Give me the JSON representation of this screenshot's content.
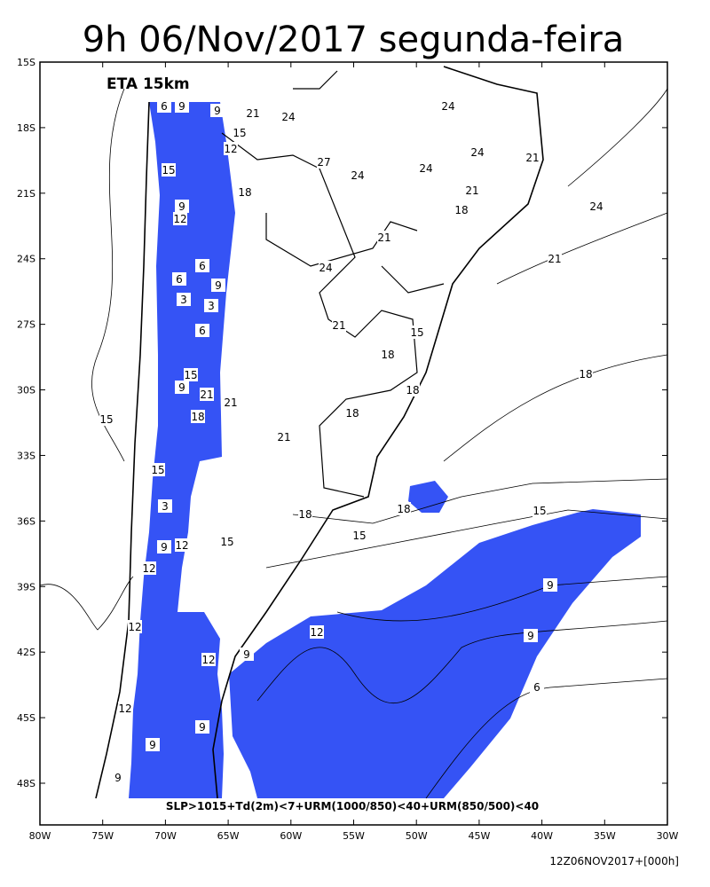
{
  "header": {
    "title": "9h 06/Nov/2017 segunda-feira",
    "model": "ETA 15km"
  },
  "map": {
    "lat_ticks": [
      {
        "value": -15,
        "label": "15S"
      },
      {
        "value": -18,
        "label": "18S"
      },
      {
        "value": -21,
        "label": "21S"
      },
      {
        "value": -24,
        "label": "24S"
      },
      {
        "value": -27,
        "label": "27S"
      },
      {
        "value": -30,
        "label": "30S"
      },
      {
        "value": -33,
        "label": "33S"
      },
      {
        "value": -36,
        "label": "36S"
      },
      {
        "value": -39,
        "label": "39S"
      },
      {
        "value": -42,
        "label": "42S"
      },
      {
        "value": -45,
        "label": "45S"
      },
      {
        "value": -48,
        "label": "48S"
      }
    ],
    "lon_ticks": [
      {
        "value": -80,
        "label": "80W"
      },
      {
        "value": -75,
        "label": "75W"
      },
      {
        "value": -70,
        "label": "70W"
      },
      {
        "value": -65,
        "label": "65W"
      },
      {
        "value": -60,
        "label": "60W"
      },
      {
        "value": -55,
        "label": "55W"
      },
      {
        "value": -50,
        "label": "50W"
      },
      {
        "value": -45,
        "label": "45W"
      },
      {
        "value": -40,
        "label": "40W"
      },
      {
        "value": -35,
        "label": "35W"
      },
      {
        "value": -30,
        "label": "30W"
      }
    ],
    "contour_labels": [
      "6",
      "9",
      "9",
      "21",
      "15",
      "12",
      "24",
      "24",
      "24",
      "21",
      "24",
      "24",
      "27",
      "21",
      "18",
      "18",
      "15",
      "9",
      "12",
      "24",
      "21",
      "21",
      "24",
      "6",
      "6",
      "9",
      "3",
      "3",
      "21",
      "6",
      "15",
      "18",
      "18",
      "15",
      "9",
      "18",
      "21",
      "21",
      "18",
      "15",
      "18",
      "21",
      "15",
      "3",
      "18",
      "18",
      "15",
      "15",
      "15",
      "12",
      "9",
      "9",
      "12",
      "12",
      "9",
      "9",
      "12",
      "9",
      "6",
      "12",
      "12",
      "9",
      "9"
    ],
    "criteria": "SLP>1015+Td(2m)<7+URM(1000/850)<40+URM(850/500)<40"
  },
  "footer": {
    "stamp": "12Z06NOV2017+[000h]"
  }
}
